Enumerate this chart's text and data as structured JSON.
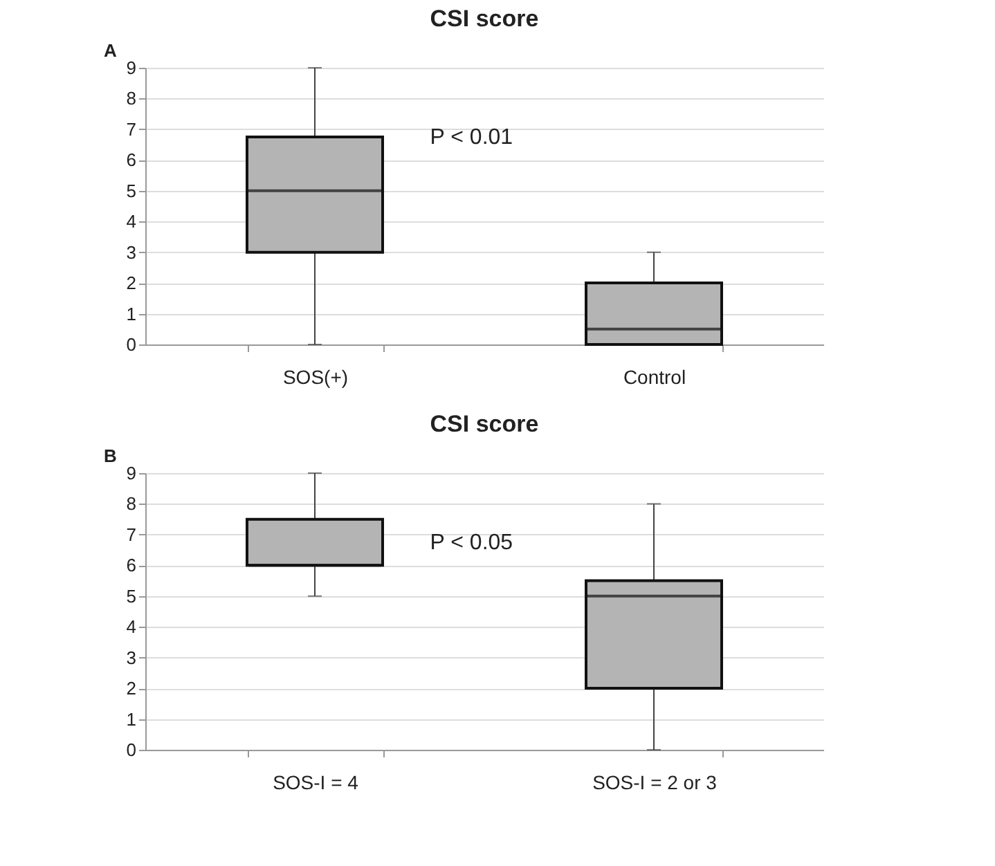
{
  "chart_data": [
    {
      "type": "box",
      "title": "CSI score",
      "annotations": [
        "A",
        "P < 0.01"
      ],
      "categories": [
        "SOS(+)",
        "Control"
      ],
      "color": "#b4b4b4",
      "boxes": [
        {
          "low": 0,
          "q1": 3,
          "median": 5,
          "q3": 6.75,
          "high": 9
        },
        {
          "low": 0,
          "q1": 0,
          "median": 0.5,
          "q3": 2,
          "high": 3
        }
      ],
      "ylim": [
        0,
        9
      ],
      "yticks": [
        0,
        1,
        2,
        3,
        4,
        5,
        6,
        7,
        8,
        9
      ],
      "grid": "y"
    },
    {
      "type": "box",
      "title": "CSI score",
      "annotations": [
        "B",
        "P < 0.05"
      ],
      "categories": [
        "SOS-I = 4",
        "SOS-I = 2 or 3"
      ],
      "color": "#b4b4b4",
      "boxes": [
        {
          "low": 5,
          "q1": 6,
          "median": 6,
          "q3": 7.5,
          "high": 9
        },
        {
          "low": 0,
          "q1": 2,
          "median": 5,
          "q3": 5.5,
          "high": 8
        }
      ],
      "ylim": [
        0,
        9
      ],
      "yticks": [
        0,
        1,
        2,
        3,
        4,
        5,
        6,
        7,
        8,
        9
      ],
      "grid": "y"
    }
  ]
}
